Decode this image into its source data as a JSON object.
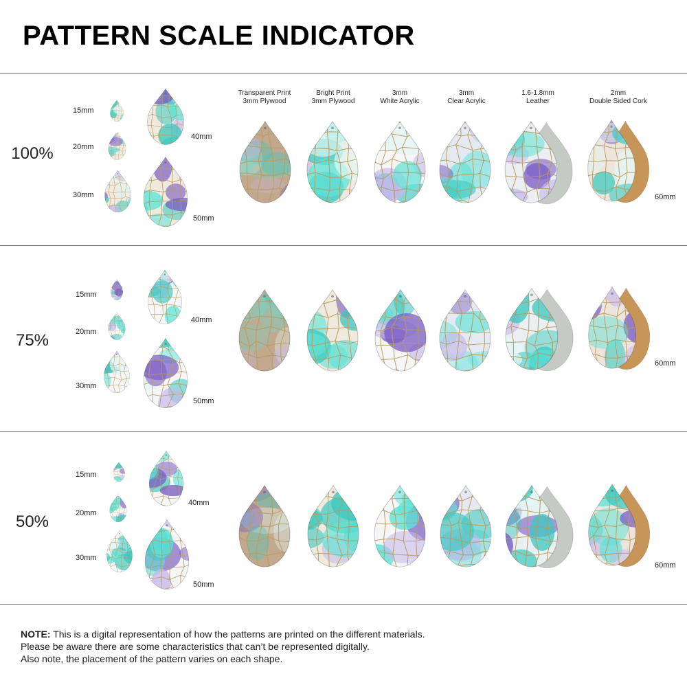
{
  "title": "PATTERN SCALE INDICATOR",
  "materials": [
    {
      "line1": "Transparent Print",
      "line2": "3mm Plywood",
      "base": "#c2a98e",
      "tint": 0.45
    },
    {
      "line1": "Bright Print",
      "line2": "3mm Plywood",
      "base": "#efe9de",
      "tint": 0.85
    },
    {
      "line1": "3mm",
      "line2": "White Acrylic",
      "base": "#f6f6f6",
      "tint": 0.85
    },
    {
      "line1": "3mm",
      "line2": "Clear Acrylic",
      "base": "#e4e9f2",
      "tint": 0.72
    },
    {
      "line1": "1.6-1.8mm",
      "line2": "Leather",
      "base": "#eceff1",
      "tint": 0.85,
      "back": "#c5cac4"
    },
    {
      "line1": "2mm",
      "line2": "Double Sided Cork",
      "base": "#ede5db",
      "tint": 0.82,
      "back": "#c79558"
    }
  ],
  "sections": [
    {
      "scale": "100%",
      "sizes": [
        "15mm",
        "20mm",
        "30mm",
        "40mm",
        "50mm"
      ],
      "big_size": "60mm"
    },
    {
      "scale": "75%",
      "sizes": [
        "15mm",
        "20mm",
        "30mm",
        "40mm",
        "50mm"
      ],
      "big_size": "60mm"
    },
    {
      "scale": "50%",
      "sizes": [
        "15mm",
        "20mm",
        "30mm",
        "40mm",
        "50mm"
      ],
      "big_size": "60mm"
    }
  ],
  "pattern_colors": {
    "aqua": "#5fe3d6",
    "turquoise": "#3cc9c0",
    "purple": "#7a5cc4",
    "lavender": "#c6b8ea",
    "pale": "#e2f6f4",
    "gold": "#b89a5e"
  },
  "note": {
    "prefix": "NOTE:",
    "line1": " This is a digital representation of how the patterns are printed on the different materials.",
    "line2": "Please be aware there are some characteristics that can’t be represented digitally.",
    "line3": "Also note, the placement of the pattern varies on each shape."
  }
}
